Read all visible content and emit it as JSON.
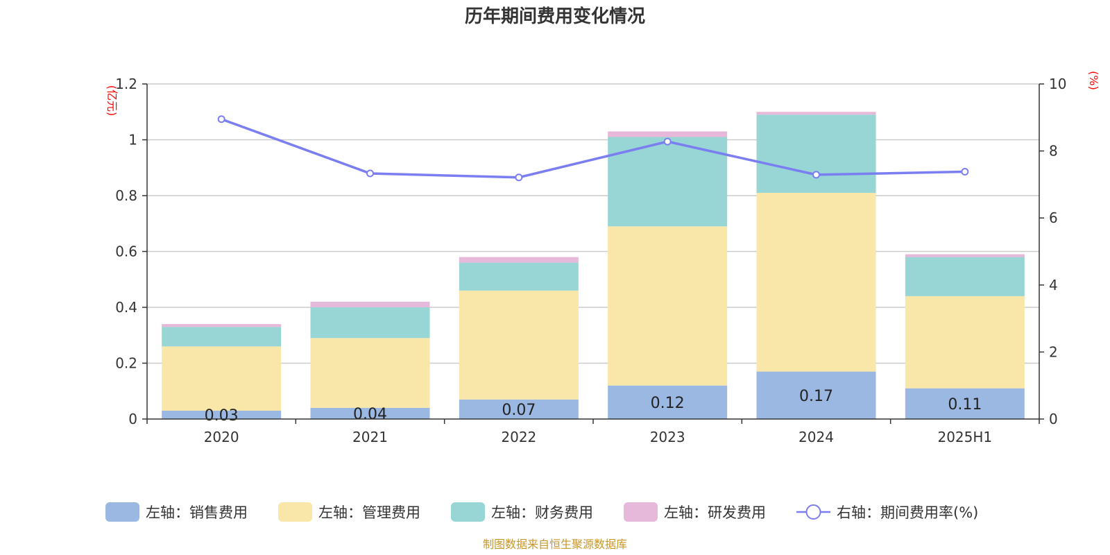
{
  "chart_data": {
    "type": "bar",
    "title": "历年期间费用变化情况",
    "categories": [
      "2020",
      "2021",
      "2022",
      "2023",
      "2024",
      "2025H1"
    ],
    "y_left": {
      "unit_label": "(亿元)",
      "ylim": [
        0,
        1.2
      ],
      "ticks": [
        "0",
        "0.2",
        "0.4",
        "0.6",
        "0.8",
        "1",
        "1.2"
      ]
    },
    "y_right": {
      "unit_label": "(%)",
      "ylim": [
        0,
        10
      ],
      "ticks": [
        "0",
        "2",
        "4",
        "6",
        "8",
        "10"
      ]
    },
    "series": [
      {
        "name": "左轴：销售费用",
        "kind": "bar",
        "axis": "left",
        "color": "#9bb8e2",
        "values": [
          0.03,
          0.04,
          0.07,
          0.12,
          0.17,
          0.11
        ],
        "labels": [
          "0.03",
          "0.04",
          "0.07",
          "0.12",
          "0.17",
          "0.11"
        ]
      },
      {
        "name": "左轴：管理费用",
        "kind": "bar",
        "axis": "left",
        "color": "#f8e7a8",
        "values": [
          0.23,
          0.25,
          0.39,
          0.57,
          0.64,
          0.33
        ]
      },
      {
        "name": "左轴：财务费用",
        "kind": "bar",
        "axis": "left",
        "color": "#98d5d5",
        "values": [
          0.07,
          0.11,
          0.1,
          0.32,
          0.28,
          0.14
        ]
      },
      {
        "name": "左轴：研发费用",
        "kind": "bar",
        "axis": "left",
        "color": "#e6b8d9",
        "values": [
          0.01,
          0.02,
          0.02,
          0.02,
          0.01,
          0.01
        ]
      },
      {
        "name": "右轴：期间费用率(%)",
        "kind": "line",
        "axis": "right",
        "color": "#7a7ef0",
        "values": [
          8.95,
          7.33,
          7.21,
          8.28,
          7.29,
          7.38
        ]
      }
    ],
    "grid": true,
    "legend_position": "bottom"
  },
  "source": "制图数据来自恒生聚源数据库"
}
